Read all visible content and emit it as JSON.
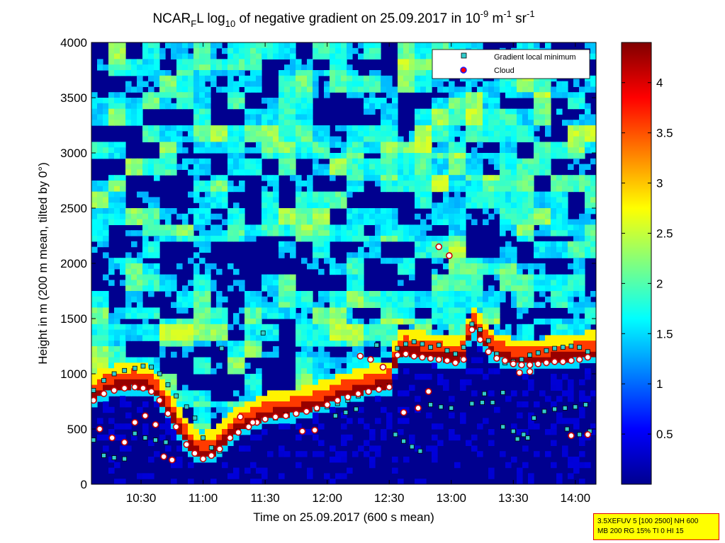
{
  "chart_data": {
    "type": "heatmap",
    "title": {
      "prefix": "NCAR",
      "sub1": "F",
      "mid1": "L log",
      "sub2": "10",
      "mid2": " of negative gradient on 25.09.2017 in 10",
      "sup1": "-9",
      "mid3": " m",
      "sup2": "-1",
      "mid4": " sr",
      "sup3": "-1"
    },
    "xlabel": "Time on 25.09.2017 (600 s mean)",
    "ylabel": "Height in m (200 m mean, tilted by 0°)",
    "xlim_minutes": [
      606,
      850
    ],
    "ylim": [
      0,
      4000
    ],
    "xticks": [
      {
        "label": "10:30",
        "minutes": 630
      },
      {
        "label": "11:00",
        "minutes": 660
      },
      {
        "label": "11:30",
        "minutes": 690
      },
      {
        "label": "12:00",
        "minutes": 720
      },
      {
        "label": "12:30",
        "minutes": 750
      },
      {
        "label": "13:00",
        "minutes": 780
      },
      {
        "label": "13:30",
        "minutes": 810
      },
      {
        "label": "14:00",
        "minutes": 840
      }
    ],
    "yticks": [
      0,
      500,
      1000,
      1500,
      2000,
      2500,
      3000,
      3500,
      4000
    ],
    "colorbar": {
      "range": [
        0,
        4.4
      ],
      "ticks": [
        0.5,
        1,
        1.5,
        2,
        2.5,
        3,
        3.5,
        4
      ],
      "colormap": "jet"
    },
    "legend": {
      "placement": "top-right",
      "entries": [
        {
          "label": "Gradient local minimum",
          "marker": "square",
          "color": "#33cccc"
        },
        {
          "label": "Cloud",
          "marker": "circle",
          "color": "#ff0000"
        }
      ]
    },
    "series": [
      {
        "name": "Gradient local minimum",
        "points": [
          [
            607,
            850
          ],
          [
            612,
            940
          ],
          [
            617,
            1000
          ],
          [
            622,
            1030
          ],
          [
            627,
            1050
          ],
          [
            631,
            1070
          ],
          [
            635,
            1060
          ],
          [
            639,
            1000
          ],
          [
            643,
            900
          ],
          [
            647,
            800
          ],
          [
            652,
            700
          ],
          [
            656,
            600
          ],
          [
            660,
            420
          ],
          [
            664,
            330
          ],
          [
            668,
            300
          ],
          [
            673,
            420
          ],
          [
            677,
            480
          ],
          [
            682,
            530
          ],
          [
            686,
            570
          ],
          [
            690,
            590
          ],
          [
            695,
            600
          ],
          [
            700,
            630
          ],
          [
            705,
            640
          ],
          [
            710,
            660
          ],
          [
            715,
            680
          ],
          [
            720,
            700
          ],
          [
            725,
            730
          ],
          [
            730,
            760
          ],
          [
            735,
            800
          ],
          [
            740,
            840
          ],
          [
            745,
            870
          ],
          [
            750,
            890
          ],
          [
            754,
            1230
          ],
          [
            758,
            1270
          ],
          [
            762,
            1290
          ],
          [
            766,
            1270
          ],
          [
            770,
            1240
          ],
          [
            774,
            1260
          ],
          [
            778,
            1210
          ],
          [
            782,
            1180
          ],
          [
            786,
            1240
          ],
          [
            790,
            1450
          ],
          [
            794,
            1400
          ],
          [
            798,
            1300
          ],
          [
            802,
            1180
          ],
          [
            806,
            1100
          ],
          [
            810,
            1110
          ],
          [
            814,
            1130
          ],
          [
            818,
            1170
          ],
          [
            822,
            1190
          ],
          [
            826,
            1210
          ],
          [
            830,
            1230
          ],
          [
            834,
            1240
          ],
          [
            838,
            1250
          ],
          [
            842,
            1240
          ],
          [
            846,
            1200
          ],
          [
            627,
            460
          ],
          [
            632,
            420
          ],
          [
            637,
            400
          ],
          [
            642,
            380
          ],
          [
            724,
            620
          ],
          [
            729,
            650
          ],
          [
            734,
            680
          ],
          [
            740,
            840
          ],
          [
            753,
            450
          ],
          [
            757,
            390
          ],
          [
            761,
            340
          ],
          [
            765,
            300
          ],
          [
            770,
            720
          ],
          [
            775,
            700
          ],
          [
            780,
            690
          ],
          [
            790,
            730
          ],
          [
            795,
            740
          ],
          [
            800,
            740
          ],
          [
            805,
            520
          ],
          [
            810,
            480
          ],
          [
            815,
            450
          ],
          [
            820,
            600
          ],
          [
            825,
            660
          ],
          [
            830,
            680
          ],
          [
            835,
            690
          ],
          [
            840,
            700
          ],
          [
            845,
            720
          ],
          [
            607,
            400
          ],
          [
            612,
            260
          ],
          [
            617,
            240
          ],
          [
            622,
            230
          ],
          [
            669,
            1230
          ],
          [
            689,
            1370
          ],
          [
            744,
            1260
          ],
          [
            796,
            820
          ],
          [
            805,
            830
          ],
          [
            836,
            500
          ],
          [
            842,
            450
          ],
          [
            847,
            480
          ],
          [
            812,
            410
          ],
          [
            817,
            420
          ]
        ]
      },
      {
        "name": "Cloud",
        "points": [
          [
            607,
            760
          ],
          [
            612,
            820
          ],
          [
            617,
            850
          ],
          [
            622,
            870
          ],
          [
            627,
            880
          ],
          [
            631,
            870
          ],
          [
            635,
            840
          ],
          [
            639,
            760
          ],
          [
            643,
            640
          ],
          [
            647,
            520
          ],
          [
            652,
            360
          ],
          [
            656,
            280
          ],
          [
            660,
            230
          ],
          [
            664,
            260
          ],
          [
            668,
            320
          ],
          [
            673,
            420
          ],
          [
            677,
            470
          ],
          [
            682,
            520
          ],
          [
            686,
            560
          ],
          [
            690,
            590
          ],
          [
            695,
            610
          ],
          [
            700,
            620
          ],
          [
            705,
            640
          ],
          [
            710,
            660
          ],
          [
            715,
            690
          ],
          [
            720,
            720
          ],
          [
            725,
            760
          ],
          [
            730,
            790
          ],
          [
            735,
            820
          ],
          [
            740,
            840
          ],
          [
            745,
            860
          ],
          [
            750,
            880
          ],
          [
            754,
            1170
          ],
          [
            758,
            1180
          ],
          [
            762,
            1160
          ],
          [
            766,
            1150
          ],
          [
            770,
            1140
          ],
          [
            774,
            1130
          ],
          [
            778,
            1120
          ],
          [
            782,
            1100
          ],
          [
            786,
            1130
          ],
          [
            790,
            1400
          ],
          [
            794,
            1310
          ],
          [
            798,
            1200
          ],
          [
            802,
            1140
          ],
          [
            806,
            1120
          ],
          [
            810,
            1090
          ],
          [
            814,
            1080
          ],
          [
            818,
            1080
          ],
          [
            822,
            1090
          ],
          [
            826,
            1100
          ],
          [
            830,
            1110
          ],
          [
            834,
            1110
          ],
          [
            838,
            1120
          ],
          [
            842,
            1130
          ],
          [
            846,
            1150
          ],
          [
            736,
            1160
          ],
          [
            741,
            1130
          ],
          [
            747,
            1060
          ],
          [
            774,
            2150
          ],
          [
            779,
            2070
          ],
          [
            610,
            500
          ],
          [
            616,
            420
          ],
          [
            622,
            380
          ],
          [
            627,
            560
          ],
          [
            632,
            620
          ],
          [
            637,
            540
          ],
          [
            678,
            610
          ],
          [
            684,
            560
          ],
          [
            708,
            480
          ],
          [
            714,
            490
          ],
          [
            757,
            650
          ],
          [
            764,
            690
          ],
          [
            769,
            840
          ],
          [
            813,
            1010
          ],
          [
            818,
            1020
          ],
          [
            838,
            440
          ],
          [
            846,
            450
          ],
          [
            641,
            250
          ],
          [
            645,
            220
          ]
        ]
      }
    ]
  },
  "info_box": {
    "line1": "3.5XEFUV 5 [100 2500] NH 600",
    "line2": "MB 200 RG 15% TI 0 HI 15"
  }
}
